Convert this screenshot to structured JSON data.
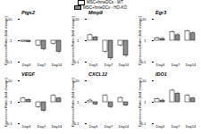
{
  "chart_data": [
    {
      "type": "bar",
      "title": "Ptgs2",
      "y_label": "Expression Ratio (fold change)",
      "categories": [
        "Day3",
        "Day7",
        "Day14"
      ],
      "log": "y",
      "ylim": [
        0.1,
        10
      ],
      "yticks": [
        0.1,
        1,
        10
      ],
      "series": [
        {
          "name": "MSC+hmeDCs - WT",
          "color": "#ffffff",
          "values": [
            0.9,
            0.6,
            0.7
          ],
          "errors": [
            0.05,
            0.08,
            0.08
          ]
        },
        {
          "name": "MSC+hmeDCs - HO-KO",
          "color": "#8c8c8c",
          "values": [
            0.85,
            0.4,
            0.3
          ],
          "errors": [
            0.05,
            0.06,
            0.05
          ]
        }
      ]
    },
    {
      "type": "bar",
      "title": "Mmp9",
      "y_label": "Expression Ratio (fold change)",
      "categories": [
        "Day3",
        "Day7",
        "Day14"
      ],
      "log": "y",
      "ylim": [
        0.1,
        10
      ],
      "yticks": [
        0.1,
        1,
        10
      ],
      "series": [
        {
          "name": "MSC+hmeDCs - WT",
          "color": "#ffffff",
          "values": [
            1.8,
            0.3,
            0.6
          ],
          "errors": [
            0.3,
            0.05,
            0.08
          ]
        },
        {
          "name": "MSC+hmeDCs - HO-KO",
          "color": "#8c8c8c",
          "values": [
            1.4,
            0.15,
            0.2
          ],
          "errors": [
            0.2,
            0.03,
            0.04
          ]
        }
      ]
    },
    {
      "type": "bar",
      "title": "Egr3",
      "y_label": "Expression Ratio (fold change)",
      "categories": [
        "Day3",
        "Day7",
        "Day14"
      ],
      "log": "y",
      "ylim": [
        0.1,
        10
      ],
      "yticks": [
        0.1,
        1,
        10
      ],
      "series": [
        {
          "name": "MSC+hmeDCs - WT",
          "color": "#ffffff",
          "values": [
            1.3,
            2.5,
            2.8
          ],
          "errors": [
            0.2,
            0.4,
            0.4
          ]
        },
        {
          "name": "MSC+hmeDCs - HO-KO",
          "color": "#8c8c8c",
          "values": [
            1.2,
            1.8,
            2.2
          ],
          "errors": [
            0.2,
            0.3,
            0.3
          ]
        }
      ]
    },
    {
      "type": "bar",
      "title": "VEGF",
      "y_label": "Expression Ratio (fold change)",
      "categories": [
        "Day3",
        "Day7",
        "Day14"
      ],
      "log": "y",
      "ylim": [
        0.1,
        10
      ],
      "yticks": [
        0.1,
        1,
        10
      ],
      "series": [
        {
          "name": "MSC+hmeDCs - WT",
          "color": "#ffffff",
          "values": [
            1.5,
            0.6,
            2.0
          ],
          "errors": [
            0.2,
            0.08,
            0.3
          ]
        },
        {
          "name": "MSC+hmeDCs - HO-KO",
          "color": "#8c8c8c",
          "values": [
            1.3,
            0.4,
            1.5
          ],
          "errors": [
            0.2,
            0.06,
            0.2
          ]
        }
      ]
    },
    {
      "type": "bar",
      "title": "CXCL12",
      "y_label": "Expression Ratio (fold change)",
      "categories": [
        "Day3",
        "Day7",
        "Day14"
      ],
      "log": "y",
      "ylim": [
        0.1,
        10
      ],
      "yticks": [
        0.1,
        1,
        10
      ],
      "series": [
        {
          "name": "MSC+hmeDCs - WT",
          "color": "#ffffff",
          "values": [
            1.2,
            2.0,
            1.6
          ],
          "errors": [
            0.2,
            0.3,
            0.2
          ]
        },
        {
          "name": "MSC+hmeDCs - HO-KO",
          "color": "#8c8c8c",
          "values": [
            0.8,
            0.6,
            0.7
          ],
          "errors": [
            0.08,
            0.08,
            0.08
          ]
        }
      ]
    },
    {
      "type": "bar",
      "title": "IDO1",
      "y_label": "Expression Ratio (fold change)",
      "categories": [
        "Day3",
        "Day7",
        "Day14"
      ],
      "log": "y",
      "ylim": [
        0.1,
        10
      ],
      "yticks": [
        0.1,
        1,
        10
      ],
      "series": [
        {
          "name": "MSC+hmeDCs - WT",
          "color": "#ffffff",
          "values": [
            1.4,
            3.5,
            2.0
          ],
          "errors": [
            0.2,
            0.5,
            0.3
          ]
        },
        {
          "name": "MSC+hmeDCs - HO-KO",
          "color": "#8c8c8c",
          "values": [
            1.2,
            2.5,
            1.5
          ],
          "errors": [
            0.2,
            0.4,
            0.2
          ]
        }
      ]
    }
  ]
}
